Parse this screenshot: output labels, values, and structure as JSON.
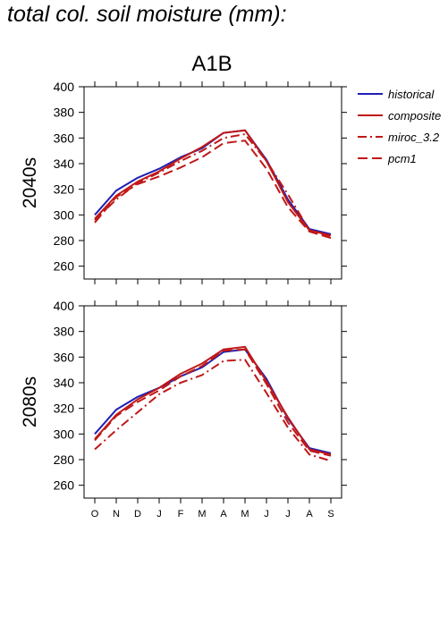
{
  "page": {
    "title": "total col. soil moisture (mm):"
  },
  "chart_data": {
    "type": "line",
    "title": "A1B",
    "categories": [
      "O",
      "N",
      "D",
      "J",
      "F",
      "M",
      "A",
      "M",
      "J",
      "J",
      "A",
      "S"
    ],
    "ylim": [
      250,
      400
    ],
    "yticks": [
      260,
      280,
      300,
      320,
      340,
      360,
      380,
      400
    ],
    "legend_placement": "right",
    "legend": [
      {
        "name": "historical",
        "color": "#1f1fb4",
        "dash": "solid"
      },
      {
        "name": "composite",
        "color": "#c01818",
        "dash": "solid"
      },
      {
        "name": "miroc_3.2",
        "color": "#c01818",
        "dash": "dashdot"
      },
      {
        "name": "pcm1",
        "color": "#c01818",
        "dash": "dashed"
      }
    ],
    "panels": [
      {
        "ylabel": "2040s",
        "series": [
          {
            "name": "historical",
            "values": [
              300,
              319,
              329,
              336,
              345,
              352,
              364,
              366,
              343,
              312,
              289,
              285
            ]
          },
          {
            "name": "composite",
            "values": [
              297,
              315,
              326,
              334,
              344,
              353,
              364,
              366,
              342,
              310,
              288,
              284
            ]
          },
          {
            "name": "miroc_3.2",
            "values": [
              296,
              312,
              325,
              333,
              342,
              350,
              360,
              363,
              342,
              316,
              288,
              283
            ]
          },
          {
            "name": "pcm1",
            "values": [
              294,
              314,
              324,
              330,
              337,
              345,
              356,
              358,
              336,
              306,
              287,
              282
            ]
          }
        ]
      },
      {
        "ylabel": "2080s",
        "series": [
          {
            "name": "historical",
            "values": [
              300,
              319,
              329,
              336,
              345,
              352,
              364,
              366,
              343,
              312,
              289,
              285
            ]
          },
          {
            "name": "composite",
            "values": [
              296,
              315,
              327,
              336,
              347,
              355,
              366,
              368,
              341,
              313,
              288,
              284
            ]
          },
          {
            "name": "miroc_3.2",
            "values": [
              288,
              303,
              317,
              331,
              340,
              346,
              357,
              358,
              332,
              305,
              284,
              279
            ]
          },
          {
            "name": "pcm1",
            "values": [
              295,
              314,
              325,
              334,
              345,
              353,
              365,
              366,
              339,
              309,
              287,
              283
            ]
          }
        ]
      }
    ]
  }
}
